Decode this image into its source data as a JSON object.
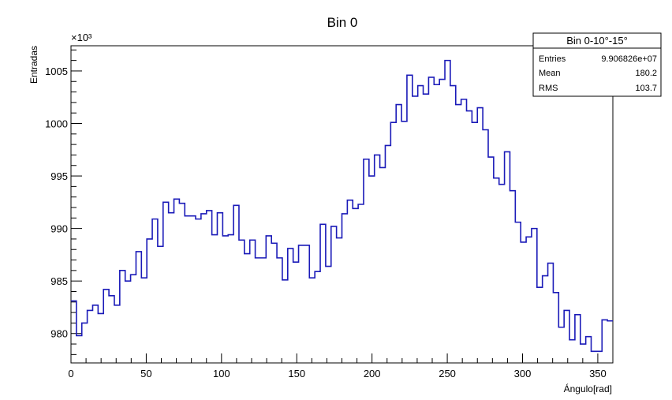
{
  "chart_data": {
    "type": "histogram-step",
    "title": "Bin 0",
    "xlabel": "Ángulo[rad]",
    "ylabel": "Entradas",
    "y_multiplier": "×10³",
    "xlim": [
      0,
      360
    ],
    "ylim": [
      977.2,
      1007.4
    ],
    "x_ticks": [
      0,
      50,
      100,
      150,
      200,
      250,
      300,
      350
    ],
    "y_ticks": [
      980,
      985,
      990,
      995,
      1000,
      1005
    ],
    "line_color": "#1a1ab8",
    "bin_width": 3.6,
    "values": [
      983.1,
      979.8,
      981.0,
      982.2,
      982.7,
      981.9,
      984.2,
      983.6,
      982.7,
      986.0,
      985.0,
      985.6,
      987.8,
      985.3,
      989.0,
      990.9,
      988.3,
      992.5,
      991.5,
      992.8,
      992.4,
      991.2,
      991.2,
      990.9,
      991.4,
      991.7,
      989.4,
      991.5,
      989.3,
      989.4,
      992.2,
      988.9,
      987.6,
      988.9,
      987.2,
      987.2,
      989.3,
      988.6,
      987.2,
      985.1,
      988.1,
      986.8,
      988.4,
      988.4,
      985.3,
      985.9,
      990.4,
      986.4,
      990.2,
      989.1,
      991.4,
      992.7,
      991.9,
      992.3,
      996.6,
      995.0,
      997.0,
      995.8,
      997.9,
      1000.1,
      1001.8,
      1000.2,
      1004.6,
      1002.6,
      1003.6,
      1002.8,
      1004.4,
      1003.7,
      1004.2,
      1006.0,
      1003.6,
      1001.8,
      1002.3,
      1001.2,
      1000.1,
      1001.5,
      999.4,
      996.8,
      994.8,
      994.2,
      997.3,
      993.6,
      990.6,
      988.7,
      989.2,
      990.0,
      984.4,
      985.5,
      986.7,
      983.9,
      980.6,
      982.2,
      979.4,
      981.8,
      979.0,
      979.7,
      978.3,
      978.3,
      981.3,
      981.2
    ]
  },
  "stats": {
    "title": "Bin 0-10°-15°",
    "rows": [
      {
        "label": "Entries",
        "value": "9.906826e+07"
      },
      {
        "label": "Mean",
        "value": "180.2"
      },
      {
        "label": "RMS",
        "value": "103.7"
      }
    ]
  }
}
